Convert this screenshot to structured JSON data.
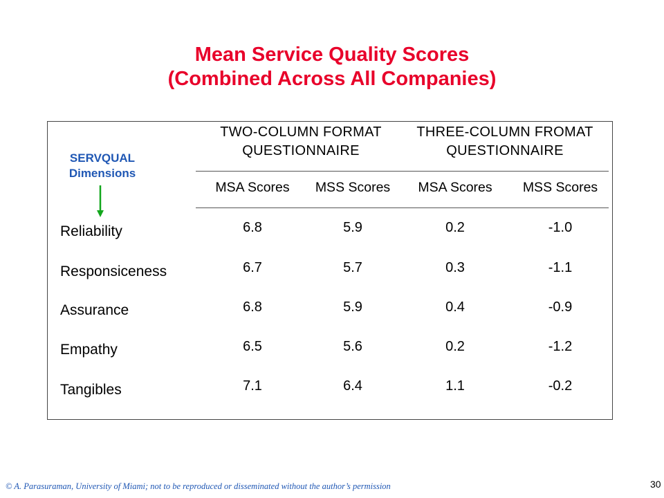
{
  "title_line1": "Mean Service Quality Scores",
  "title_line2": "(Combined Across All Companies)",
  "servqual_line1": "SERVQUAL",
  "servqual_line2": "Dimensions",
  "groups": [
    {
      "line1": "TWO-COLUMN FORMAT",
      "line2": "QUESTIONNAIRE"
    },
    {
      "line1": "THREE-COLUMN FROMAT",
      "line2": "QUESTIONNAIRE"
    }
  ],
  "columns": [
    "MSA Scores",
    "MSS Scores",
    "MSA Scores",
    "MSS Scores"
  ],
  "rows": [
    {
      "label": "Reliability",
      "values": [
        "6.8",
        "5.9",
        "0.2",
        "-1.0"
      ]
    },
    {
      "label": "Responsiceness",
      "values": [
        "6.7",
        "5.7",
        "0.3",
        "-1.1"
      ]
    },
    {
      "label": "Assurance",
      "values": [
        "6.8",
        "5.9",
        "0.4",
        "-0.9"
      ]
    },
    {
      "label": "Empathy",
      "values": [
        "6.5",
        "5.6",
        "0.2",
        "-1.2"
      ]
    },
    {
      "label": "Tangibles",
      "values": [
        "7.1",
        "6.4",
        "1.1",
        "-0.2"
      ]
    }
  ],
  "footer": "© A. Parasuraman, University of Miami; not to be reproduced or disseminated without the author’s permission",
  "page_number": "30",
  "colors": {
    "title": "#e8002a",
    "servqual": "#1f57b4",
    "arrow": "#12a61c",
    "footer": "#1f57b4"
  },
  "icons": {
    "arrow": "arrow-down-icon"
  }
}
